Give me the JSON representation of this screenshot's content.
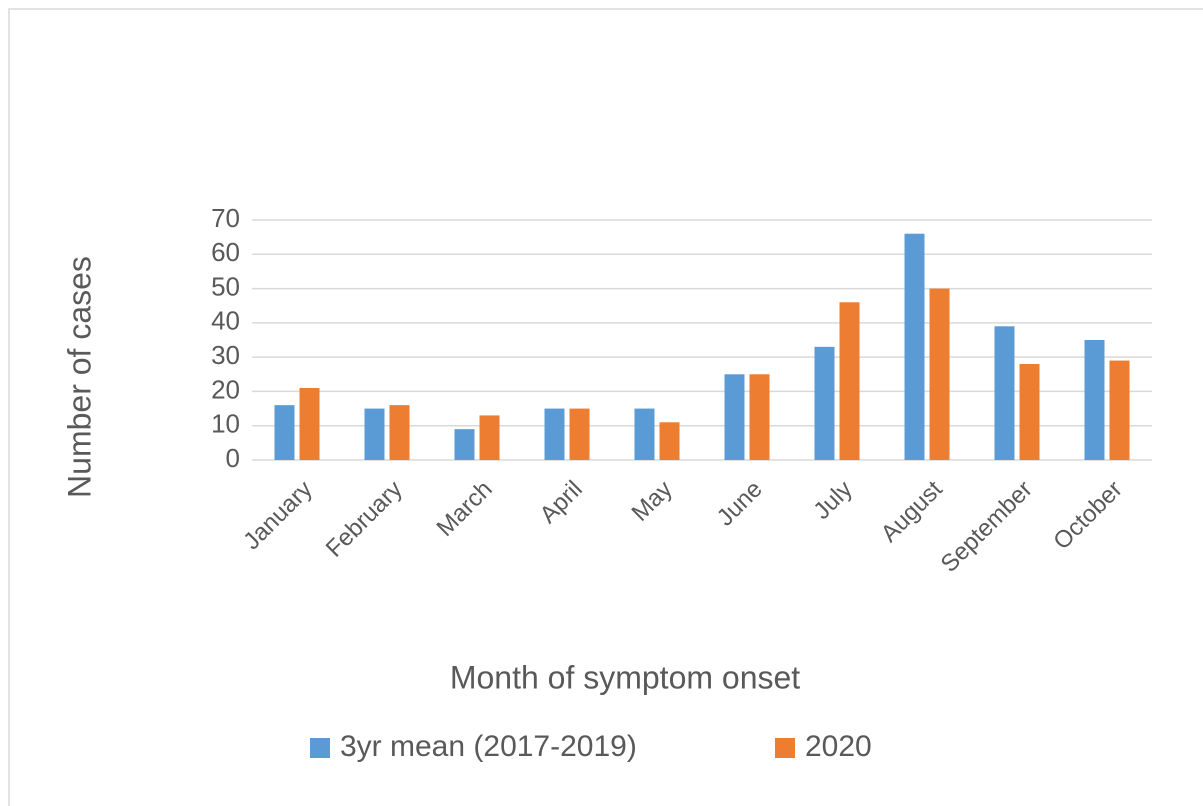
{
  "chart_data": {
    "type": "bar",
    "x_label": "Month of symptom onset",
    "y_label": "Number of cases",
    "categories": [
      "January",
      "February",
      "March",
      "April",
      "May",
      "June",
      "July",
      "August",
      "September",
      "October"
    ],
    "series": [
      {
        "name": "3yr mean (2017-2019)",
        "color": "#5b9bd5",
        "values": [
          16,
          15,
          9,
          15,
          15,
          25,
          33,
          66,
          39,
          35
        ]
      },
      {
        "name": "2020",
        "color": "#ed7d31",
        "values": [
          21,
          16,
          13,
          15,
          11,
          25,
          46,
          50,
          28,
          29
        ]
      }
    ],
    "ylim": [
      0,
      70
    ],
    "yticks": [
      0,
      10,
      20,
      30,
      40,
      50,
      60,
      70
    ],
    "grid": true,
    "legend": "bottom"
  }
}
